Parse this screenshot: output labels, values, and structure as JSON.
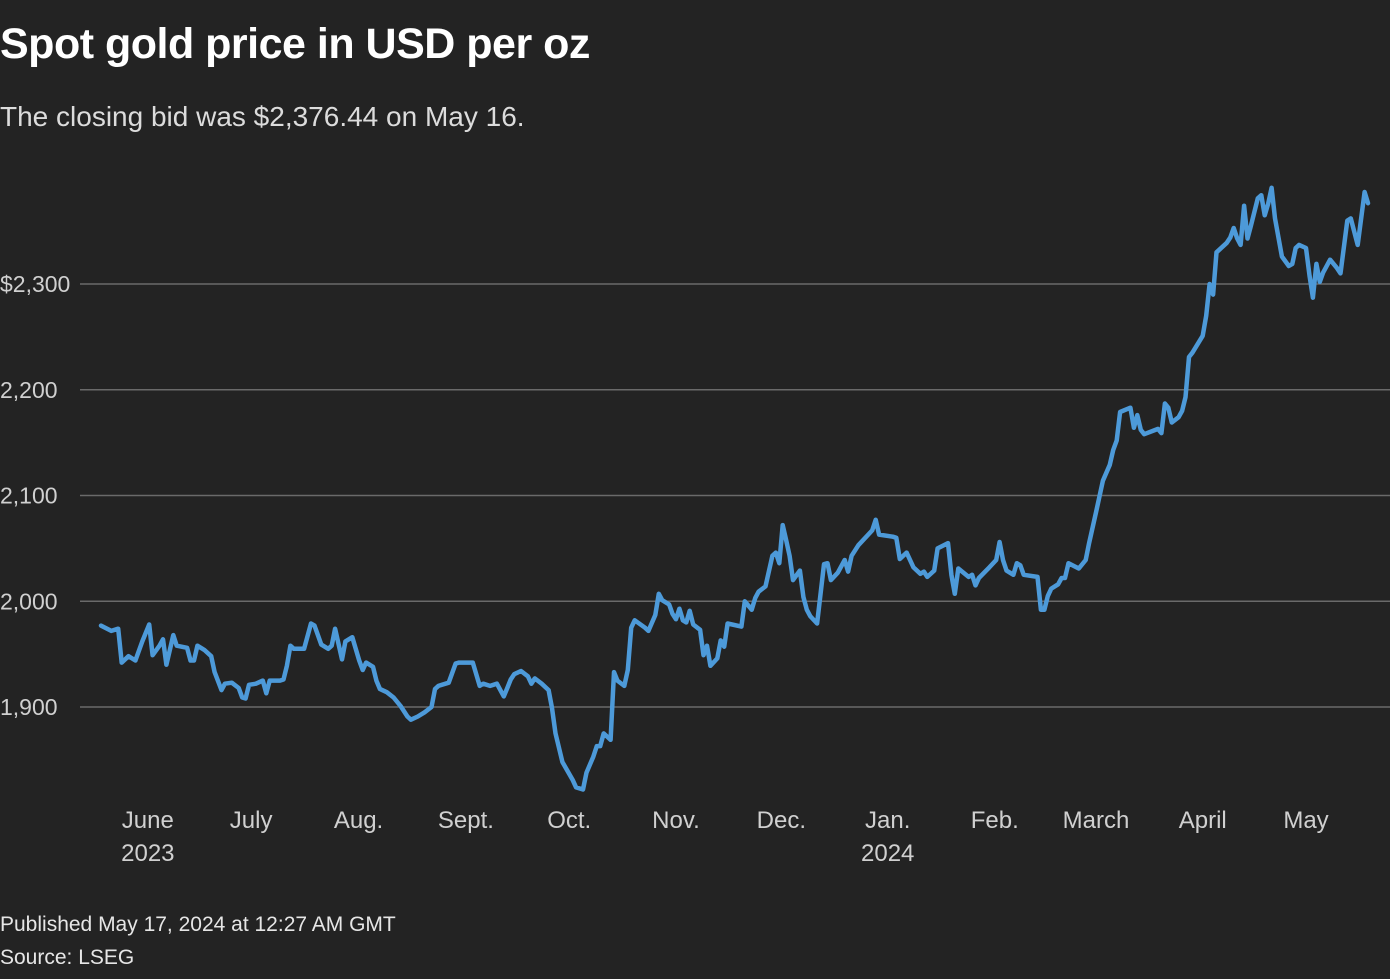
{
  "header": {
    "title": "Spot gold price in USD per oz",
    "subtitle": "The closing bid was $2,376.44 on May 16."
  },
  "footer": {
    "published": "Published May 17, 2024 at 12:27 AM GMT",
    "source": "Source: LSEG"
  },
  "colors": {
    "background": "#232323",
    "line": "#4d9ad9",
    "grid": "#6a6a6a",
    "tick_text": "#d0d0d0"
  },
  "chart_data": {
    "type": "line",
    "title": "Spot gold price in USD per oz",
    "xlabel": "",
    "ylabel": "",
    "x_unit": "days since start (mid-May 2023)",
    "xlim": [
      0,
      368
    ],
    "ylim": [
      1810,
      2400
    ],
    "grid": true,
    "y_ticks": [
      {
        "value": 2300,
        "label": "$2,300"
      },
      {
        "value": 2200,
        "label": "2,200"
      },
      {
        "value": 2100,
        "label": "2,100"
      },
      {
        "value": 2000,
        "label": "2,000"
      },
      {
        "value": 1900,
        "label": "1,900"
      }
    ],
    "x_ticks": [
      {
        "day": 13.6,
        "label": "June",
        "year": "2023"
      },
      {
        "day": 43.6,
        "label": "July",
        "year": ""
      },
      {
        "day": 74.8,
        "label": "Aug.",
        "year": ""
      },
      {
        "day": 106,
        "label": "Sept.",
        "year": ""
      },
      {
        "day": 136,
        "label": "Oct.",
        "year": ""
      },
      {
        "day": 167,
        "label": "Nov.",
        "year": ""
      },
      {
        "day": 197.6,
        "label": "Dec.",
        "year": ""
      },
      {
        "day": 228.5,
        "label": "Jan.",
        "year": "2024"
      },
      {
        "day": 259.6,
        "label": "Feb.",
        "year": ""
      },
      {
        "day": 289,
        "label": "March",
        "year": ""
      },
      {
        "day": 320,
        "label": "April",
        "year": ""
      },
      {
        "day": 350,
        "label": "May",
        "year": ""
      }
    ],
    "series": [
      {
        "name": "Spot gold",
        "points": [
          [
            0,
            1977
          ],
          [
            3,
            1972
          ],
          [
            5,
            1974
          ],
          [
            6,
            1942
          ],
          [
            8,
            1948
          ],
          [
            10,
            1944
          ],
          [
            12,
            1962
          ],
          [
            14,
            1978
          ],
          [
            15,
            1949
          ],
          [
            17,
            1958
          ],
          [
            18,
            1964
          ],
          [
            19,
            1940
          ],
          [
            21,
            1968
          ],
          [
            22,
            1958
          ],
          [
            25,
            1956
          ],
          [
            26,
            1944
          ],
          [
            27,
            1944
          ],
          [
            28,
            1958
          ],
          [
            30,
            1954
          ],
          [
            32,
            1948
          ],
          [
            33,
            1933
          ],
          [
            35,
            1916
          ],
          [
            36,
            1922
          ],
          [
            38,
            1923
          ],
          [
            40,
            1918
          ],
          [
            41,
            1909
          ],
          [
            42,
            1908
          ],
          [
            43,
            1921
          ],
          [
            45,
            1922
          ],
          [
            47,
            1925
          ],
          [
            48,
            1913
          ],
          [
            49,
            1925
          ],
          [
            52,
            1925
          ],
          [
            53,
            1926
          ],
          [
            54,
            1939
          ],
          [
            55,
            1958
          ],
          [
            56,
            1955
          ],
          [
            59,
            1955
          ],
          [
            61,
            1979
          ],
          [
            62,
            1977
          ],
          [
            64,
            1959
          ],
          [
            66,
            1955
          ],
          [
            67,
            1958
          ],
          [
            68,
            1974
          ],
          [
            70,
            1945
          ],
          [
            71,
            1962
          ],
          [
            73,
            1966
          ],
          [
            75,
            1944
          ],
          [
            76,
            1935
          ],
          [
            77,
            1942
          ],
          [
            79,
            1938
          ],
          [
            80,
            1925
          ],
          [
            81,
            1917
          ],
          [
            83,
            1914
          ],
          [
            85,
            1909
          ],
          [
            87,
            1901
          ],
          [
            89,
            1891
          ],
          [
            90,
            1888
          ],
          [
            92,
            1891
          ],
          [
            94,
            1895
          ],
          [
            96,
            1900
          ],
          [
            97,
            1917
          ],
          [
            98,
            1920
          ],
          [
            101,
            1923
          ],
          [
            103,
            1941
          ],
          [
            104,
            1942
          ],
          [
            108,
            1942
          ],
          [
            110,
            1920
          ],
          [
            111,
            1922
          ],
          [
            113,
            1920
          ],
          [
            115,
            1922
          ],
          [
            117,
            1910
          ],
          [
            118,
            1918
          ],
          [
            119,
            1926
          ],
          [
            120,
            1931
          ],
          [
            122,
            1934
          ],
          [
            124,
            1929
          ],
          [
            125,
            1922
          ],
          [
            126,
            1927
          ],
          [
            128,
            1922
          ],
          [
            130,
            1916
          ],
          [
            131,
            1899
          ],
          [
            132,
            1875
          ],
          [
            134,
            1848
          ],
          [
            137,
            1831
          ],
          [
            138,
            1824
          ],
          [
            140,
            1822
          ],
          [
            141,
            1838
          ],
          [
            143,
            1853
          ],
          [
            144,
            1863
          ],
          [
            145,
            1863
          ],
          [
            146,
            1875
          ],
          [
            148,
            1869
          ],
          [
            149,
            1933
          ],
          [
            150,
            1925
          ],
          [
            152,
            1920
          ],
          [
            153,
            1935
          ],
          [
            154,
            1975
          ],
          [
            155,
            1982
          ],
          [
            158,
            1975
          ],
          [
            159,
            1972
          ],
          [
            161,
            1987
          ],
          [
            162,
            2007
          ],
          [
            163,
            2001
          ],
          [
            165,
            1997
          ],
          [
            166,
            1988
          ],
          [
            167,
            1983
          ],
          [
            168,
            1993
          ],
          [
            169,
            1982
          ],
          [
            170,
            1980
          ],
          [
            171,
            1991
          ],
          [
            172,
            1978
          ],
          [
            174,
            1973
          ],
          [
            175,
            1949
          ],
          [
            176,
            1958
          ],
          [
            177,
            1939
          ],
          [
            179,
            1946
          ],
          [
            180,
            1963
          ],
          [
            181,
            1957
          ],
          [
            182,
            1979
          ],
          [
            186,
            1976
          ],
          [
            187,
            2000
          ],
          [
            188,
            1996
          ],
          [
            189,
            1992
          ],
          [
            190,
            2003
          ],
          [
            191,
            2009
          ],
          [
            193,
            2014
          ],
          [
            195,
            2043
          ],
          [
            196,
            2046
          ],
          [
            197,
            2036
          ],
          [
            198,
            2072
          ],
          [
            199,
            2058
          ],
          [
            200,
            2043
          ],
          [
            201,
            2020
          ],
          [
            203,
            2029
          ],
          [
            204,
            2004
          ],
          [
            205,
            1992
          ],
          [
            206,
            1986
          ],
          [
            208,
            1979
          ],
          [
            210,
            2035
          ],
          [
            211,
            2036
          ],
          [
            212,
            2020
          ],
          [
            214,
            2027
          ],
          [
            216,
            2039
          ],
          [
            217,
            2028
          ],
          [
            218,
            2043
          ],
          [
            220,
            2053
          ],
          [
            224,
            2067
          ],
          [
            225,
            2077
          ],
          [
            226,
            2063
          ],
          [
            230,
            2061
          ],
          [
            231,
            2060
          ],
          [
            232,
            2040
          ],
          [
            234,
            2046
          ],
          [
            236,
            2032
          ],
          [
            238,
            2026
          ],
          [
            239,
            2028
          ],
          [
            240,
            2023
          ],
          [
            242,
            2029
          ],
          [
            243,
            2050
          ],
          [
            246,
            2055
          ],
          [
            247,
            2025
          ],
          [
            248,
            2007
          ],
          [
            249,
            2031
          ],
          [
            252,
            2023
          ],
          [
            253,
            2025
          ],
          [
            254,
            2015
          ],
          [
            255,
            2022
          ],
          [
            258,
            2032
          ],
          [
            260,
            2039
          ],
          [
            261,
            2056
          ],
          [
            262,
            2039
          ],
          [
            263,
            2029
          ],
          [
            265,
            2025
          ],
          [
            266,
            2036
          ],
          [
            267,
            2034
          ],
          [
            268,
            2025
          ],
          [
            272,
            2023
          ],
          [
            273,
            1992
          ],
          [
            274,
            1992
          ],
          [
            275,
            2005
          ],
          [
            276,
            2012
          ],
          [
            278,
            2016
          ],
          [
            279,
            2022
          ],
          [
            280,
            2022
          ],
          [
            281,
            2036
          ],
          [
            284,
            2031
          ],
          [
            286,
            2039
          ],
          [
            287,
            2055
          ],
          [
            289,
            2084
          ],
          [
            291,
            2114
          ],
          [
            293,
            2129
          ],
          [
            294,
            2143
          ],
          [
            295,
            2152
          ],
          [
            296,
            2179
          ],
          [
            299,
            2183
          ],
          [
            300,
            2164
          ],
          [
            301,
            2176
          ],
          [
            302,
            2162
          ],
          [
            303,
            2158
          ],
          [
            307,
            2163
          ],
          [
            308,
            2159
          ],
          [
            309,
            2187
          ],
          [
            310,
            2183
          ],
          [
            311,
            2169
          ],
          [
            313,
            2174
          ],
          [
            314,
            2180
          ],
          [
            315,
            2193
          ],
          [
            316,
            2231
          ],
          [
            317,
            2235
          ],
          [
            320,
            2251
          ],
          [
            321,
            2270
          ],
          [
            322,
            2300
          ],
          [
            323,
            2290
          ],
          [
            324,
            2330
          ],
          [
            327,
            2339
          ],
          [
            328,
            2344
          ],
          [
            329,
            2353
          ],
          [
            330,
            2343
          ],
          [
            331,
            2337
          ],
          [
            332,
            2374
          ],
          [
            333,
            2343
          ],
          [
            334,
            2355
          ],
          [
            336,
            2381
          ],
          [
            337,
            2384
          ],
          [
            338,
            2365
          ],
          [
            339,
            2376
          ],
          [
            340,
            2391
          ],
          [
            341,
            2362
          ],
          [
            343,
            2326
          ],
          [
            345,
            2317
          ],
          [
            346,
            2319
          ],
          [
            347,
            2334
          ],
          [
            348,
            2337
          ],
          [
            350,
            2334
          ],
          [
            351,
            2308
          ],
          [
            352,
            2287
          ],
          [
            353,
            2319
          ],
          [
            354,
            2302
          ],
          [
            355,
            2311
          ],
          [
            357,
            2323
          ],
          [
            359,
            2315
          ],
          [
            360,
            2310
          ],
          [
            362,
            2360
          ],
          [
            363,
            2362
          ],
          [
            365,
            2337
          ],
          [
            367,
            2387
          ],
          [
            368,
            2376.44
          ]
        ]
      }
    ]
  }
}
